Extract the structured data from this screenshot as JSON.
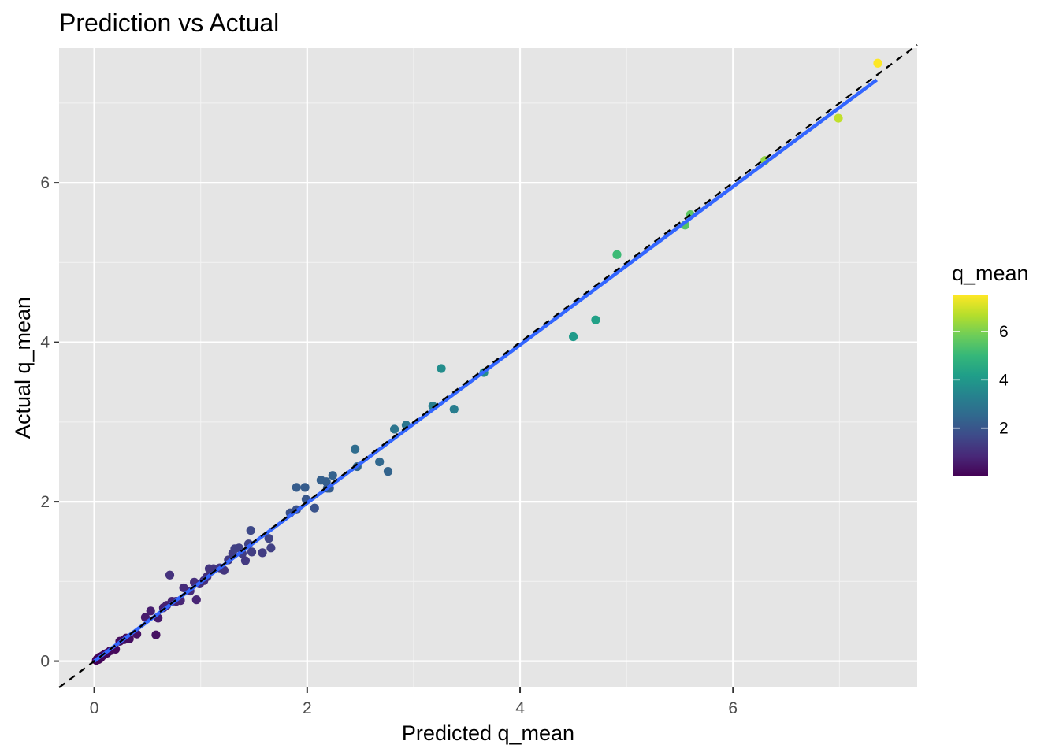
{
  "chart_data": {
    "type": "scatter",
    "title": "Prediction vs Actual",
    "xlabel": "Predicted q_mean",
    "ylabel": "Actual q_mean",
    "xlim": [
      -0.33,
      7.73
    ],
    "ylim": [
      -0.33,
      7.69
    ],
    "x_ticks": [
      0,
      2,
      4,
      6
    ],
    "y_ticks": [
      0,
      2,
      4,
      6
    ],
    "grid": true,
    "panel_background": "#e5e5e5",
    "reference_line": {
      "style": "dashed",
      "slope": 1,
      "intercept": 0,
      "color": "#000000"
    },
    "fit_line": {
      "x": [
        0.0,
        7.35
      ],
      "y": [
        0.0,
        7.29
      ],
      "color": "#3366ff"
    },
    "legend": {
      "title": "q_mean",
      "placement": "right",
      "ticks": [
        2,
        4,
        6
      ],
      "range": [
        0.0,
        7.5
      ],
      "colors": [
        "#440154",
        "#482878",
        "#3e4a89",
        "#31688e",
        "#26828e",
        "#1f9e89",
        "#35b779",
        "#6dcd59",
        "#b4de2c",
        "#fde725"
      ]
    },
    "points": [
      {
        "x": 0.02,
        "y": 0.01
      },
      {
        "x": 0.03,
        "y": 0.03
      },
      {
        "x": 0.04,
        "y": 0.02
      },
      {
        "x": 0.05,
        "y": 0.05
      },
      {
        "x": 0.06,
        "y": 0.04
      },
      {
        "x": 0.07,
        "y": 0.06
      },
      {
        "x": 0.08,
        "y": 0.07
      },
      {
        "x": 0.1,
        "y": 0.09
      },
      {
        "x": 0.12,
        "y": 0.1
      },
      {
        "x": 0.15,
        "y": 0.13
      },
      {
        "x": 0.2,
        "y": 0.15
      },
      {
        "x": 0.24,
        "y": 0.25
      },
      {
        "x": 0.28,
        "y": 0.27
      },
      {
        "x": 0.3,
        "y": 0.29
      },
      {
        "x": 0.33,
        "y": 0.28
      },
      {
        "x": 0.4,
        "y": 0.34
      },
      {
        "x": 0.48,
        "y": 0.55
      },
      {
        "x": 0.53,
        "y": 0.63
      },
      {
        "x": 0.58,
        "y": 0.33
      },
      {
        "x": 0.6,
        "y": 0.54
      },
      {
        "x": 0.65,
        "y": 0.67
      },
      {
        "x": 0.68,
        "y": 0.7
      },
      {
        "x": 0.71,
        "y": 1.08
      },
      {
        "x": 0.73,
        "y": 0.75
      },
      {
        "x": 0.77,
        "y": 0.75
      },
      {
        "x": 0.81,
        "y": 0.76
      },
      {
        "x": 0.84,
        "y": 0.92
      },
      {
        "x": 0.9,
        "y": 0.88
      },
      {
        "x": 0.94,
        "y": 0.99
      },
      {
        "x": 0.96,
        "y": 0.77
      },
      {
        "x": 0.99,
        "y": 0.97
      },
      {
        "x": 1.03,
        "y": 1.01
      },
      {
        "x": 1.06,
        "y": 1.06
      },
      {
        "x": 1.08,
        "y": 1.16
      },
      {
        "x": 1.12,
        "y": 1.16
      },
      {
        "x": 1.18,
        "y": 1.17
      },
      {
        "x": 1.22,
        "y": 1.14
      },
      {
        "x": 1.26,
        "y": 1.27
      },
      {
        "x": 1.3,
        "y": 1.35
      },
      {
        "x": 1.32,
        "y": 1.41
      },
      {
        "x": 1.36,
        "y": 1.42
      },
      {
        "x": 1.39,
        "y": 1.35
      },
      {
        "x": 1.42,
        "y": 1.26
      },
      {
        "x": 1.45,
        "y": 1.47
      },
      {
        "x": 1.47,
        "y": 1.64
      },
      {
        "x": 1.48,
        "y": 1.37
      },
      {
        "x": 1.58,
        "y": 1.36
      },
      {
        "x": 1.64,
        "y": 1.54
      },
      {
        "x": 1.66,
        "y": 1.42
      },
      {
        "x": 1.84,
        "y": 1.86
      },
      {
        "x": 1.9,
        "y": 1.9
      },
      {
        "x": 1.9,
        "y": 2.18
      },
      {
        "x": 1.98,
        "y": 2.18
      },
      {
        "x": 1.99,
        "y": 2.03
      },
      {
        "x": 2.07,
        "y": 1.92
      },
      {
        "x": 2.13,
        "y": 2.27
      },
      {
        "x": 2.18,
        "y": 2.25
      },
      {
        "x": 2.19,
        "y": 2.17
      },
      {
        "x": 2.21,
        "y": 2.17
      },
      {
        "x": 2.24,
        "y": 2.33
      },
      {
        "x": 2.45,
        "y": 2.66
      },
      {
        "x": 2.47,
        "y": 2.44
      },
      {
        "x": 2.68,
        "y": 2.5
      },
      {
        "x": 2.76,
        "y": 2.38
      },
      {
        "x": 2.82,
        "y": 2.91
      },
      {
        "x": 2.93,
        "y": 2.96
      },
      {
        "x": 3.18,
        "y": 3.2
      },
      {
        "x": 3.26,
        "y": 3.67
      },
      {
        "x": 3.38,
        "y": 3.16
      },
      {
        "x": 3.66,
        "y": 3.62
      },
      {
        "x": 4.5,
        "y": 4.07
      },
      {
        "x": 4.71,
        "y": 4.28
      },
      {
        "x": 4.91,
        "y": 5.1
      },
      {
        "x": 5.55,
        "y": 5.47
      },
      {
        "x": 5.6,
        "y": 5.6
      },
      {
        "x": 6.3,
        "y": 6.28
      },
      {
        "x": 6.99,
        "y": 6.81
      },
      {
        "x": 7.36,
        "y": 7.5
      }
    ]
  }
}
